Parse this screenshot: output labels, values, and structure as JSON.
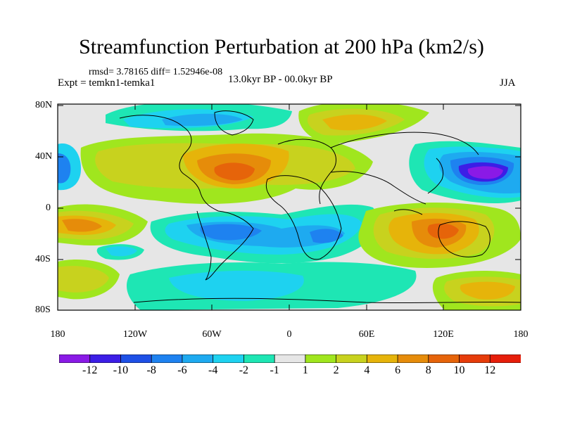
{
  "header": {
    "title": "Streamfunction Perturbation at 200 hPa (km2/s)",
    "rmsd_line": "rmsd= 3.78165 diff= 1.52946e-08",
    "experiment": "Expt = temkn1-temka1",
    "period": "13.0kyr BP - 00.0kyr BP",
    "season": "JJA"
  },
  "axes": {
    "lat_labels": [
      "80N",
      "40N",
      "0",
      "40S",
      "80S"
    ],
    "lon_labels": [
      "180",
      "120W",
      "60W",
      "0",
      "60E",
      "120E",
      "180"
    ]
  },
  "colorbar": {
    "labels": [
      "-12",
      "-10",
      "-8",
      "-6",
      "-4",
      "-2",
      "-1",
      "1",
      "2",
      "4",
      "6",
      "8",
      "10",
      "12"
    ],
    "colors": [
      "#8a1ae6",
      "#3c1ee6",
      "#1e50e6",
      "#1e82f0",
      "#1eaaf0",
      "#1ed2f0",
      "#1ee6b4",
      "#e6e6e6",
      "#a0e61e",
      "#c8d21e",
      "#e6b40a",
      "#e68c0a",
      "#e6640a",
      "#e63c0a",
      "#e61e0a"
    ]
  },
  "map": {
    "palette": {
      "land": "#e6e6e6",
      "neg12": "#8a1ae6",
      "neg10": "#3c1ee6",
      "neg6": "#1e82f0",
      "neg4": "#1eaaf0",
      "neg2": "#1ed2f0",
      "neg1": "#1ee6b4",
      "pos1": "#a0e61e",
      "pos2": "#c8d21e",
      "pos4": "#e6b40a",
      "pos6": "#e68c0a",
      "pos8": "#e6640a",
      "pos10": "#e63c0a"
    }
  }
}
